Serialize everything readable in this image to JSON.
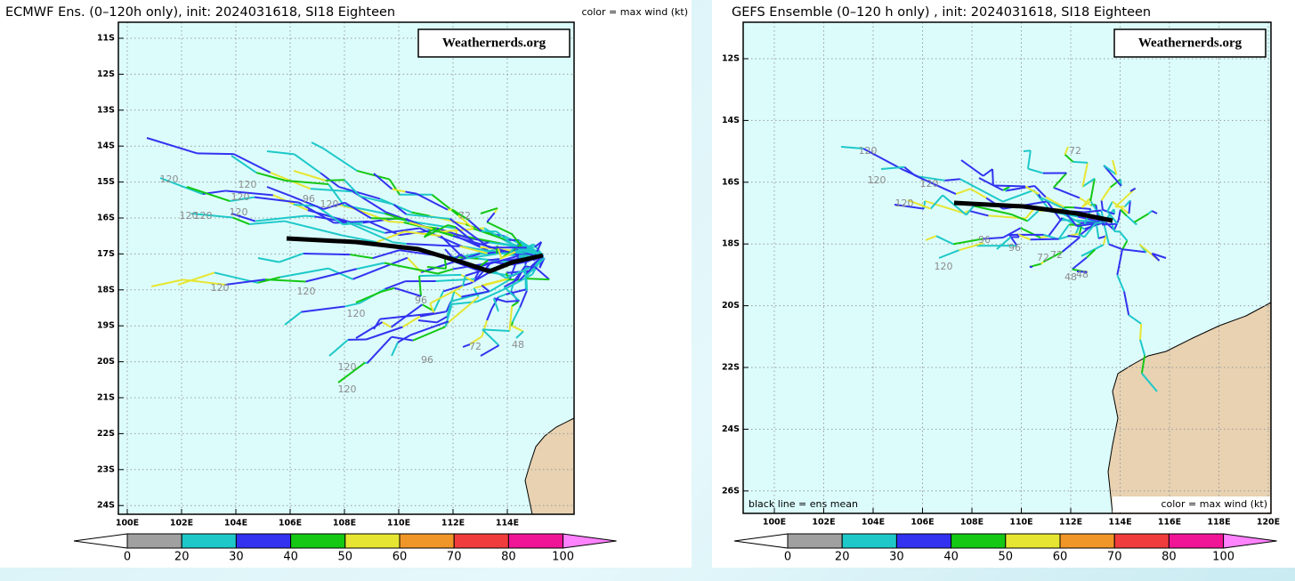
{
  "left": {
    "title": "ECMWF Ens. (0–120h only), init: 2024031618, SI18 Eighteen",
    "legend": "color = max wind (kt)",
    "watermark": "Weathernerds.org",
    "lat_labels": [
      "11S",
      "12S",
      "13S",
      "14S",
      "15S",
      "16S",
      "17S",
      "18S",
      "19S",
      "20S",
      "21S",
      "22S",
      "23S",
      "24S"
    ],
    "lon_labels": [
      "100E",
      "102E",
      "104E",
      "106E",
      "108E",
      "110E",
      "112E",
      "114E"
    ],
    "hour_labels": [
      120,
      120,
      120,
      120,
      120,
      120,
      96,
      120,
      120,
      120,
      120,
      120,
      120,
      96,
      96,
      72,
      48,
      72
    ]
  },
  "right": {
    "title": "GEFS Ensemble (0–120 h only) , init: 2024031618, SI18 Eighteen",
    "legend": "color = max wind (kt)",
    "note": "black line = ens mean",
    "watermark": "Weathernerds.org",
    "lat_labels": [
      "12S",
      "14S",
      "16S",
      "18S",
      "20S",
      "22S",
      "24S",
      "26S"
    ],
    "lon_labels": [
      "100E",
      "102E",
      "104E",
      "106E",
      "108E",
      "110E",
      "112E",
      "114E",
      "116E",
      "118E",
      "120E"
    ],
    "hour_labels": [
      120,
      120,
      120,
      120,
      120,
      96,
      96,
      72,
      72,
      72,
      48,
      48
    ]
  },
  "colorbar": {
    "ticks": [
      0,
      20,
      30,
      40,
      50,
      60,
      70,
      80,
      100
    ],
    "colors": [
      "#a0a0a0",
      "#1ec8c8",
      "#3232f0",
      "#14c814",
      "#e6e632",
      "#f09628",
      "#f03c3c",
      "#f01496"
    ],
    "under_color": "#ffffff",
    "over_color": "#ff82ff"
  }
}
